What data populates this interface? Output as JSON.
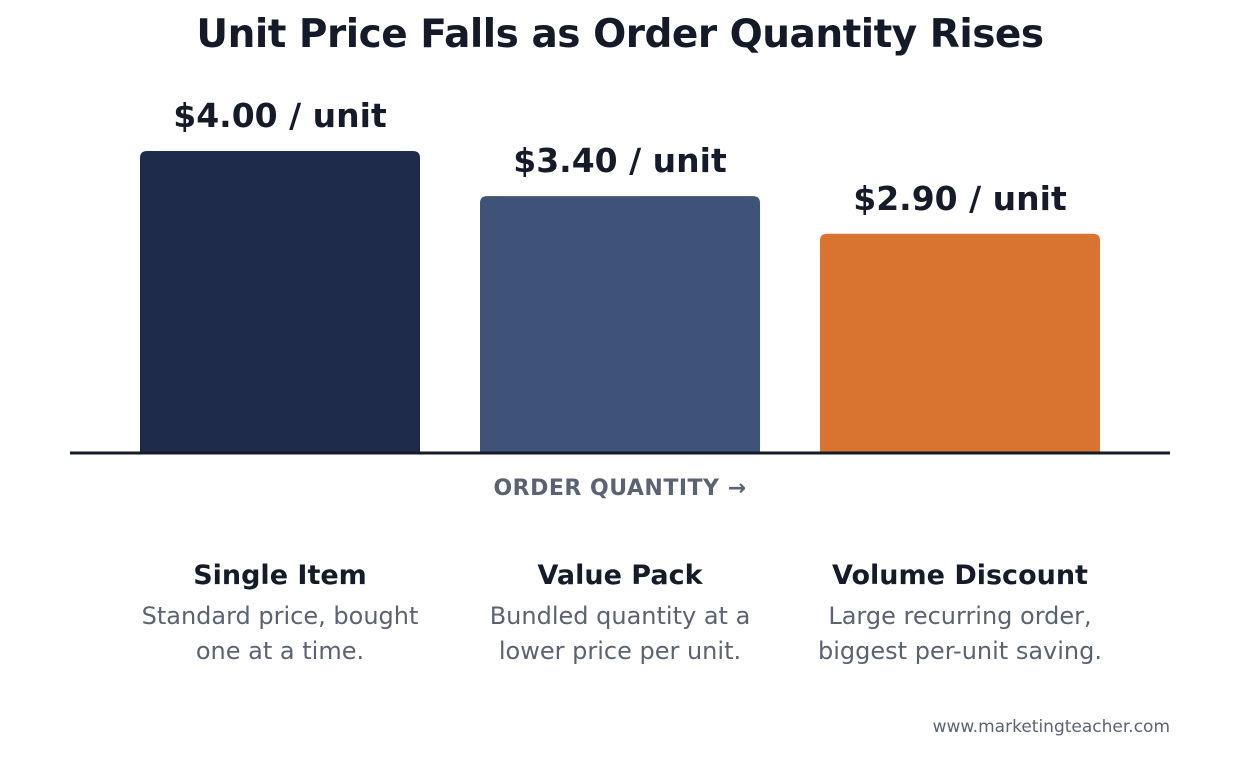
{
  "chart_data": {
    "type": "bar",
    "title": "Unit Price Falls as Order Quantity Rises",
    "xlabel": "ORDER QUANTITY →",
    "ylabel": "",
    "ylim": [
      0,
      4.0
    ],
    "grid": false,
    "categories": [
      "Single Item",
      "Value Pack",
      "Volume Discount"
    ],
    "values": [
      4.0,
      3.4,
      2.9
    ],
    "data_labels": [
      "$4.00 / unit",
      "$3.40 / unit",
      "$2.90 / unit"
    ],
    "descriptions": [
      [
        "Standard price, bought",
        "one at a time."
      ],
      [
        "Bundled quantity at a",
        "lower price per unit."
      ],
      [
        "Large recurring order,",
        "biggest per-unit saving."
      ]
    ],
    "colors": [
      "#1f2b4a",
      "#3f5278",
      "#d97330"
    ]
  },
  "source": "www.marketingteacher.com"
}
